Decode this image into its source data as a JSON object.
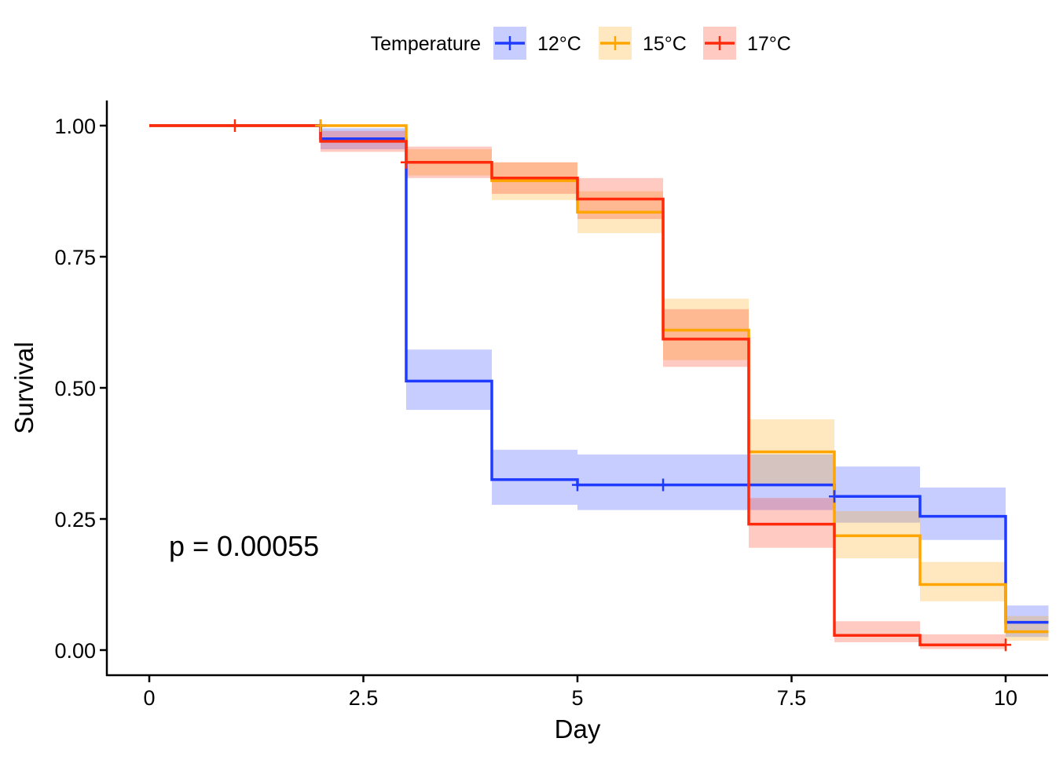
{
  "chart_data": {
    "type": "line",
    "subtype": "kaplan-meier-step",
    "xlabel": "Day",
    "ylabel": "Survival",
    "xlim": [
      0,
      10.5
    ],
    "ylim": [
      0,
      1
    ],
    "x_ticks": [
      0,
      2.5,
      5,
      7.5,
      10
    ],
    "x_tick_labels": [
      "0",
      "2.5",
      "5",
      "7.5",
      "10"
    ],
    "y_ticks": [
      0,
      0.25,
      0.5,
      0.75,
      1
    ],
    "y_tick_labels": [
      "0.00",
      "0.25",
      "0.50",
      "0.75",
      "1.00"
    ],
    "grid": false,
    "legend": {
      "title": "Temperature",
      "position": "top"
    },
    "annotation": "p = 0.00055",
    "series": [
      {
        "name": "12°C",
        "color": "#1f3bff",
        "x": [
          0,
          2,
          3,
          4,
          5,
          6,
          7,
          8,
          9,
          10,
          10.5
        ],
        "y": [
          1.0,
          0.975,
          0.513,
          0.325,
          0.315,
          0.315,
          0.315,
          0.293,
          0.255,
          0.053,
          0.053
        ],
        "lower": [
          1.0,
          0.955,
          0.458,
          0.277,
          0.267,
          0.267,
          0.267,
          0.243,
          0.21,
          0.025,
          0.025
        ],
        "upper": [
          1.0,
          0.995,
          0.573,
          0.382,
          0.373,
          0.373,
          0.373,
          0.35,
          0.31,
          0.085,
          0.085
        ],
        "censor_x": [
          2,
          5,
          6,
          8
        ],
        "censor_y": [
          1.0,
          0.315,
          0.315,
          0.293
        ]
      },
      {
        "name": "15°C",
        "color": "#ffa500",
        "x": [
          0,
          3,
          4,
          5,
          6,
          7,
          8,
          9,
          10,
          10.5
        ],
        "y": [
          1.0,
          0.93,
          0.895,
          0.835,
          0.61,
          0.378,
          0.218,
          0.125,
          0.035,
          0.035
        ],
        "lower": [
          1.0,
          0.905,
          0.858,
          0.795,
          0.553,
          0.315,
          0.175,
          0.093,
          0.018,
          0.018
        ],
        "upper": [
          1.0,
          0.955,
          0.93,
          0.875,
          0.67,
          0.44,
          0.265,
          0.168,
          0.065,
          0.065
        ],
        "censor_x": [
          2
        ],
        "censor_y": [
          1.0
        ]
      },
      {
        "name": "17°C",
        "color": "#ff2a0c",
        "x": [
          0,
          2,
          3,
          4,
          5,
          6,
          7,
          8,
          9,
          10
        ],
        "y": [
          1.0,
          0.97,
          0.93,
          0.9,
          0.86,
          0.593,
          0.24,
          0.028,
          0.01,
          0.01
        ],
        "lower": [
          1.0,
          0.95,
          0.9,
          0.87,
          0.822,
          0.54,
          0.195,
          0.015,
          0.002,
          0.002
        ],
        "upper": [
          1.0,
          0.99,
          0.96,
          0.93,
          0.9,
          0.65,
          0.29,
          0.055,
          0.03,
          0.03
        ],
        "censor_x": [
          1,
          3,
          10
        ],
        "censor_y": [
          1.0,
          0.93,
          0.01
        ]
      }
    ]
  }
}
